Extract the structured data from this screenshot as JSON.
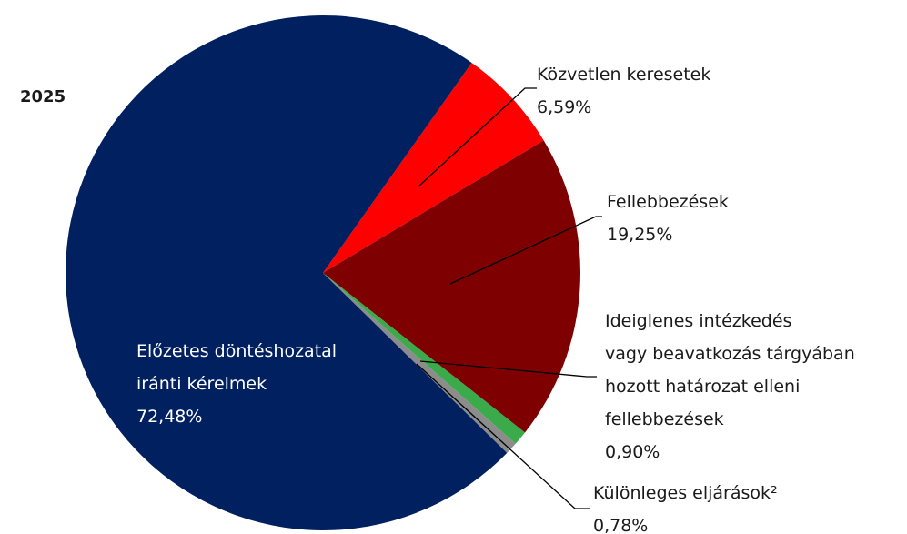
{
  "chart_data": {
    "type": "pie",
    "title": "2025",
    "categories": [
      "Közvetlen keresetek",
      "Fellebbezések",
      "Ideiglenes intézkedés\nvagy beavatkozás tárgyában\nhozott határozat elleni\nfellebbezések",
      "Különleges eljárások²",
      "Előzetes döntéshozatal\niránti kérelmek"
    ],
    "values": [
      6.59,
      19.25,
      0.9,
      0.78,
      72.48
    ],
    "value_labels": [
      "6,59%",
      "19,25%",
      "0,90%",
      "0,78%",
      "72,48%"
    ],
    "colors": [
      "#ff0000",
      "#7f0000",
      "#3aaa4a",
      "#8c8c8c",
      "#002060"
    ]
  }
}
